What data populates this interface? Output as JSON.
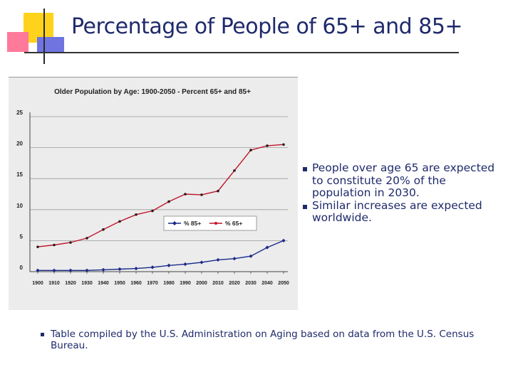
{
  "slide": {
    "title": "Percentage of People of 65+ and 85+",
    "bullets": [
      "People over age 65 are expected to constitute 20% of the population in 2030.",
      "Similar increases are expected worldwide."
    ],
    "footnote": "Table compiled by the U.S. Administration on Aging based on data from the U.S. Census Bureau."
  },
  "chart_data": {
    "type": "line",
    "title": "Older Population by Age: 1900-2050 - Percent 65+ and 85+",
    "xlabel": "",
    "ylabel": "",
    "ylim": [
      0,
      25
    ],
    "yticks": [
      "0",
      "5",
      "10",
      "15",
      "20",
      "25"
    ],
    "categories": [
      "1900",
      "1910",
      "1920",
      "1930",
      "1940",
      "1950",
      "1960",
      "1970",
      "1980",
      "1990",
      "2000",
      "2010",
      "2020",
      "2030",
      "2040",
      "2050"
    ],
    "series": [
      {
        "name": "% 85+",
        "color": "#1b2a8a",
        "values": [
          0.2,
          0.2,
          0.2,
          0.2,
          0.3,
          0.4,
          0.5,
          0.7,
          1.0,
          1.2,
          1.5,
          1.9,
          2.1,
          2.5,
          3.9,
          5.0
        ]
      },
      {
        "name": "% 65+",
        "color": "#c0142a",
        "values": [
          4.0,
          4.3,
          4.7,
          5.4,
          6.8,
          8.1,
          9.2,
          9.8,
          11.3,
          12.5,
          12.4,
          13.0,
          16.3,
          19.6,
          20.3,
          20.5
        ]
      }
    ],
    "legend": "center-right",
    "grid": true
  }
}
